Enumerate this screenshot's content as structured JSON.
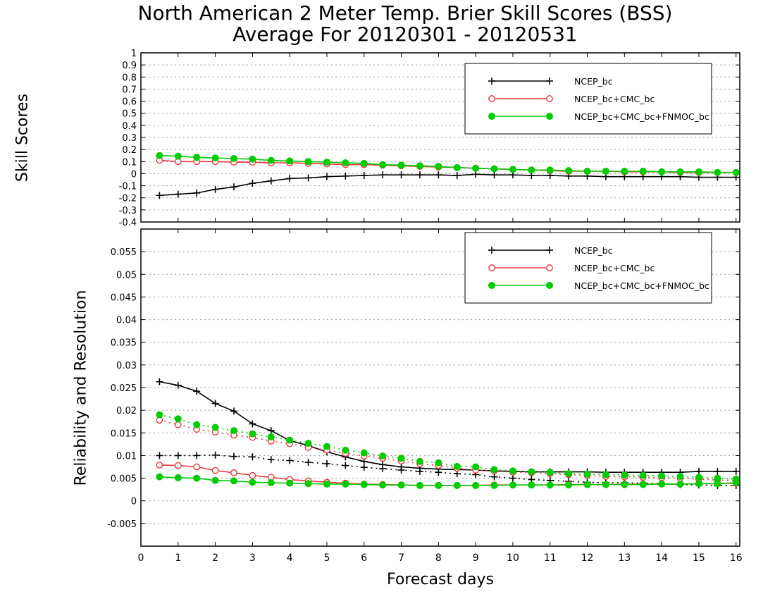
{
  "title_line1": "North American 2 Meter Temp. Brier Skill Scores (BSS)",
  "title_line2": "Average For 20120301 - 20120531",
  "xlabel": "Forecast days",
  "colors": {
    "ncep": "#000000",
    "cmc": "#e8393c",
    "fnmoc": "#00cc00"
  },
  "chart_data": [
    {
      "type": "line",
      "ylabel": "Skill Scores",
      "xlim": [
        0,
        16.1
      ],
      "ylim": [
        -0.4,
        1
      ],
      "grid": true,
      "legend_position": "top-right",
      "x_ticks": [
        "0",
        "1",
        "2",
        "3",
        "4",
        "5",
        "6",
        "7",
        "8",
        "9",
        "10",
        "11",
        "12",
        "13",
        "14",
        "15",
        "16"
      ],
      "y_ticks": [
        "-0.4",
        "-0.3",
        "-0.2",
        "-0.1",
        "0",
        "0.1",
        "0.2",
        "0.3",
        "0.4",
        "0.5",
        "0.6",
        "0.7",
        "0.8",
        "0.9",
        "1"
      ],
      "x": [
        0.5,
        1,
        1.5,
        2,
        2.5,
        3,
        3.5,
        4,
        4.5,
        5,
        5.5,
        6,
        6.5,
        7,
        7.5,
        8,
        8.5,
        9,
        9.5,
        10,
        10.5,
        11,
        11.5,
        12,
        12.5,
        13,
        13.5,
        14,
        14.5,
        15,
        15.5,
        16
      ],
      "series": [
        {
          "name": "NCEP_bc",
          "marker": "plus",
          "style": "solid",
          "color_key": "ncep",
          "values": [
            -0.18,
            -0.17,
            -0.16,
            -0.13,
            -0.11,
            -0.08,
            -0.06,
            -0.04,
            -0.035,
            -0.025,
            -0.02,
            -0.015,
            -0.01,
            -0.01,
            -0.01,
            -0.01,
            -0.015,
            -0.005,
            -0.01,
            -0.01,
            -0.015,
            -0.015,
            -0.02,
            -0.02,
            -0.025,
            -0.025,
            -0.025,
            -0.025,
            -0.025,
            -0.03,
            -0.03,
            -0.03
          ]
        },
        {
          "name": "NCEP_bc+CMC_bc",
          "marker": "circle",
          "style": "solid",
          "color_key": "cmc",
          "values": [
            0.11,
            0.1,
            0.1,
            0.1,
            0.095,
            0.095,
            0.09,
            0.09,
            0.085,
            0.08,
            0.075,
            0.075,
            0.07,
            0.065,
            0.06,
            0.055,
            0.05,
            0.045,
            0.04,
            0.035,
            0.03,
            0.025,
            0.02,
            0.02,
            0.02,
            0.015,
            0.015,
            0.015,
            0.01,
            0.01,
            0.01,
            0.01
          ]
        },
        {
          "name": "NCEP_bc+CMC_bc+FNMOC_bc",
          "marker": "dot",
          "style": "solid",
          "color_key": "fnmoc",
          "values": [
            0.15,
            0.145,
            0.135,
            0.13,
            0.125,
            0.12,
            0.11,
            0.105,
            0.1,
            0.095,
            0.09,
            0.085,
            0.075,
            0.07,
            0.065,
            0.06,
            0.05,
            0.045,
            0.04,
            0.035,
            0.03,
            0.03,
            0.025,
            0.02,
            0.02,
            0.02,
            0.02,
            0.015,
            0.015,
            0.015,
            0.01,
            0.01
          ]
        }
      ]
    },
    {
      "type": "line",
      "ylabel": "Reliability and Resolution",
      "xlim": [
        0,
        16.1
      ],
      "ylim": [
        -0.01,
        0.06
      ],
      "grid": true,
      "legend_position": "top-right",
      "x_ticks": [
        "0",
        "1",
        "2",
        "3",
        "4",
        "5",
        "6",
        "7",
        "8",
        "9",
        "10",
        "11",
        "12",
        "13",
        "14",
        "15",
        "16"
      ],
      "y_ticks": [
        "-0.005",
        "0",
        "0.005",
        "0.01",
        "0.015",
        "0.02",
        "0.025",
        "0.03",
        "0.035",
        "0.04",
        "0.045",
        "0.05",
        "0.055"
      ],
      "x": [
        0.5,
        1,
        1.5,
        2,
        2.5,
        3,
        3.5,
        4,
        4.5,
        5,
        5.5,
        6,
        6.5,
        7,
        7.5,
        8,
        8.5,
        9,
        9.5,
        10,
        10.5,
        11,
        11.5,
        12,
        12.5,
        13,
        13.5,
        14,
        14.5,
        15,
        15.5,
        16
      ],
      "series": [
        {
          "name": "NCEP_bc",
          "role": "reliability",
          "marker": "plus",
          "style": "solid",
          "color_key": "ncep",
          "values": [
            0.0263,
            0.0255,
            0.0242,
            0.0215,
            0.0198,
            0.017,
            0.0155,
            0.0133,
            0.0122,
            0.0108,
            0.0097,
            0.0087,
            0.008,
            0.0075,
            0.0072,
            0.007,
            0.0069,
            0.0068,
            0.0066,
            0.0065,
            0.0064,
            0.0064,
            0.0064,
            0.0064,
            0.0063,
            0.0063,
            0.0063,
            0.0063,
            0.0063,
            0.0065,
            0.0065,
            0.0065
          ]
        },
        {
          "name": "NCEP_bc",
          "role": "resolution",
          "marker": "plus",
          "style": "dotted",
          "color_key": "ncep",
          "values": [
            0.01,
            0.01,
            0.01,
            0.0101,
            0.0098,
            0.0097,
            0.0091,
            0.0089,
            0.0085,
            0.0082,
            0.0078,
            0.0074,
            0.0071,
            0.0068,
            0.0065,
            0.0063,
            0.006,
            0.0058,
            0.0053,
            0.005,
            0.0047,
            0.0045,
            0.0043,
            0.0041,
            0.004,
            0.004,
            0.0039,
            0.0038,
            0.0036,
            0.0035,
            0.0034,
            0.0034
          ]
        },
        {
          "name": "NCEP_bc+CMC_bc",
          "role": "reliability",
          "marker": "circle",
          "style": "solid",
          "color_key": "cmc",
          "values": [
            0.0079,
            0.0078,
            0.0075,
            0.0067,
            0.0062,
            0.0056,
            0.0052,
            0.0047,
            0.0044,
            0.0041,
            0.0039,
            0.0037,
            0.0036,
            0.0035,
            0.0034,
            0.0034,
            0.0034,
            0.0034,
            0.0035,
            0.0035,
            0.0035,
            0.0035,
            0.0036,
            0.0036,
            0.0036,
            0.0037,
            0.0037,
            0.0037,
            0.0037,
            0.0038,
            0.0038,
            0.0039
          ]
        },
        {
          "name": "NCEP_bc+CMC_bc",
          "role": "resolution",
          "marker": "circle",
          "style": "dotted",
          "color_key": "cmc",
          "values": [
            0.0178,
            0.0168,
            0.0158,
            0.0152,
            0.0145,
            0.014,
            0.0132,
            0.0126,
            0.0118,
            0.0112,
            0.0105,
            0.0099,
            0.0094,
            0.0088,
            0.0082,
            0.0078,
            0.0072,
            0.0068,
            0.0066,
            0.0063,
            0.0062,
            0.006,
            0.0058,
            0.0056,
            0.0054,
            0.0053,
            0.0052,
            0.0051,
            0.005,
            0.0048,
            0.0046,
            0.0045
          ]
        },
        {
          "name": "NCEP_bc+CMC_bc+FNMOC_bc",
          "role": "reliability",
          "marker": "dot",
          "style": "solid",
          "color_key": "fnmoc",
          "values": [
            0.0053,
            0.0051,
            0.005,
            0.0045,
            0.0044,
            0.0041,
            0.004,
            0.0039,
            0.0038,
            0.0037,
            0.0037,
            0.0036,
            0.0035,
            0.0035,
            0.0034,
            0.0034,
            0.0034,
            0.0034,
            0.0034,
            0.0035,
            0.0035,
            0.0035,
            0.0035,
            0.0036,
            0.0036,
            0.0036,
            0.0036,
            0.0037,
            0.0037,
            0.0038,
            0.0038,
            0.004
          ]
        },
        {
          "name": "NCEP_bc+CMC_bc+FNMOC_bc",
          "role": "resolution",
          "marker": "dot",
          "style": "dotted",
          "color_key": "fnmoc",
          "values": [
            0.019,
            0.0181,
            0.0168,
            0.0162,
            0.0155,
            0.0148,
            0.0141,
            0.0134,
            0.0127,
            0.012,
            0.0112,
            0.0106,
            0.0099,
            0.0094,
            0.0087,
            0.0084,
            0.0076,
            0.0075,
            0.0069,
            0.0066,
            0.0064,
            0.0063,
            0.006,
            0.0059,
            0.0058,
            0.0057,
            0.0056,
            0.0055,
            0.0054,
            0.0052,
            0.005,
            0.0048
          ]
        }
      ]
    }
  ]
}
